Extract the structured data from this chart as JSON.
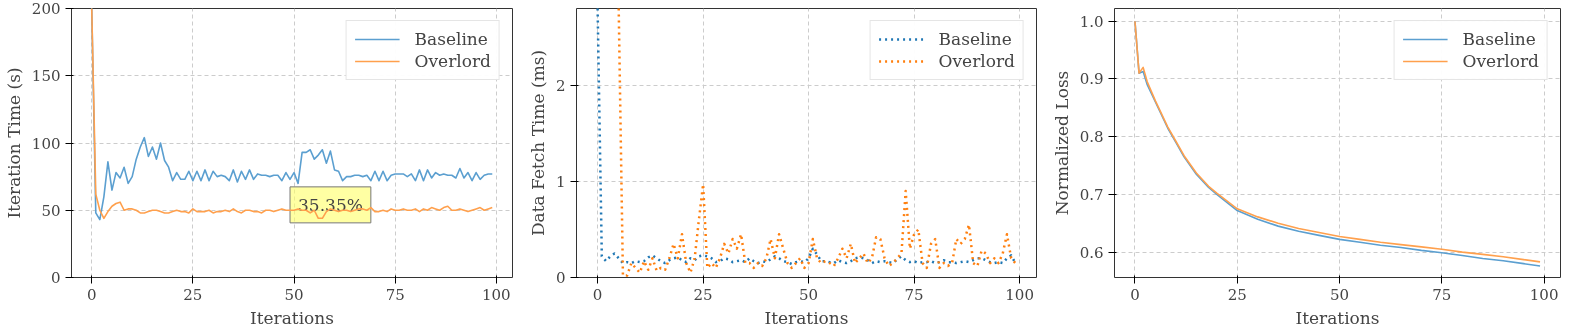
{
  "chart_data": [
    {
      "type": "line",
      "xlabel": "Iterations",
      "ylabel": "Iteration Time (s)",
      "xlim": [
        -5,
        104
      ],
      "ylim": [
        0,
        200
      ],
      "xticks": [
        0,
        25,
        50,
        75,
        100
      ],
      "yticks": [
        0,
        50,
        100,
        150,
        200
      ],
      "grid": true,
      "legend": "top right",
      "line_style": "solid",
      "annotations": [
        {
          "text": "35.35%",
          "x": 59,
          "y": 54
        }
      ],
      "x": [
        0,
        1,
        2,
        3,
        4,
        5,
        6,
        7,
        8,
        9,
        10,
        11,
        12,
        13,
        14,
        15,
        16,
        17,
        18,
        19,
        20,
        21,
        22,
        23,
        24,
        25,
        26,
        27,
        28,
        29,
        30,
        31,
        32,
        33,
        34,
        35,
        36,
        37,
        38,
        39,
        40,
        41,
        42,
        43,
        44,
        45,
        46,
        47,
        48,
        49,
        50,
        51,
        52,
        53,
        54,
        55,
        56,
        57,
        58,
        59,
        60,
        61,
        62,
        63,
        64,
        65,
        66,
        67,
        68,
        69,
        70,
        71,
        72,
        73,
        74,
        75,
        76,
        77,
        78,
        79,
        80,
        81,
        82,
        83,
        84,
        85,
        86,
        87,
        88,
        89,
        90,
        91,
        92,
        93,
        94,
        95,
        96,
        97,
        98,
        99
      ],
      "series": [
        {
          "name": "Baseline",
          "color": "#5b9fd0",
          "values": [
            200,
            48,
            43,
            60,
            86,
            65,
            78,
            74,
            82,
            70,
            75,
            88,
            97,
            104,
            90,
            97,
            88,
            100,
            87,
            82,
            72,
            78,
            73,
            73,
            79,
            72,
            79,
            72,
            80,
            72,
            79,
            75,
            76,
            75,
            72,
            80,
            71,
            79,
            73,
            80,
            73,
            77,
            76,
            76,
            75,
            76,
            76,
            72,
            78,
            73,
            78,
            70,
            93,
            93,
            95,
            88,
            91,
            95,
            85,
            94,
            80,
            79,
            72,
            75,
            75,
            76,
            76,
            75,
            76,
            72,
            79,
            72,
            79,
            72,
            76,
            77,
            77,
            77,
            75,
            77,
            72,
            80,
            72,
            80,
            74,
            78,
            76,
            77,
            76,
            76,
            74,
            81,
            74,
            78,
            72,
            78,
            73,
            76,
            77,
            77
          ]
        },
        {
          "name": "Overlord",
          "color": "#ffa04d",
          "values": [
            200,
            62,
            50,
            44,
            49,
            53,
            55,
            56,
            50,
            51,
            51,
            50,
            48,
            48,
            49,
            50,
            50,
            49,
            48,
            48,
            49,
            50,
            49,
            49,
            48,
            51,
            49,
            49,
            49,
            50,
            48,
            49,
            49,
            50,
            49,
            51,
            49,
            48,
            50,
            50,
            49,
            49,
            48,
            50,
            50,
            49,
            50,
            51,
            50,
            50,
            50,
            51,
            50,
            50,
            48,
            50,
            44,
            44,
            49,
            51,
            50,
            49,
            50,
            50,
            49,
            50,
            51,
            51,
            50,
            52,
            49,
            49,
            50,
            49,
            51,
            50,
            50,
            51,
            50,
            50,
            51,
            49,
            51,
            50,
            52,
            51,
            50,
            52,
            53,
            50,
            50,
            51,
            50,
            49,
            50,
            51,
            52,
            50,
            51,
            52
          ]
        }
      ]
    },
    {
      "type": "line",
      "xlabel": "Iterations",
      "ylabel": "Data Fetch Time (ms)",
      "xlim": [
        -5,
        104
      ],
      "ylim": [
        0,
        2.8
      ],
      "xticks": [
        0,
        25,
        50,
        75,
        100
      ],
      "yticks": [
        0,
        1,
        2
      ],
      "grid": true,
      "legend": "top right",
      "line_style": "dotted",
      "x": [
        0,
        1,
        2,
        3,
        4,
        5,
        6,
        7,
        8,
        9,
        10,
        11,
        12,
        13,
        14,
        15,
        16,
        17,
        18,
        19,
        20,
        21,
        22,
        23,
        24,
        25,
        26,
        27,
        28,
        29,
        30,
        31,
        32,
        33,
        34,
        35,
        36,
        37,
        38,
        39,
        40,
        41,
        42,
        43,
        44,
        45,
        46,
        47,
        48,
        49,
        50,
        51,
        52,
        53,
        54,
        55,
        56,
        57,
        58,
        59,
        60,
        61,
        62,
        63,
        64,
        65,
        66,
        67,
        68,
        69,
        70,
        71,
        72,
        73,
        74,
        75,
        76,
        77,
        78,
        79,
        80,
        81,
        82,
        83,
        84,
        85,
        86,
        87,
        88,
        89,
        90,
        91,
        92,
        93,
        94,
        95,
        96,
        97,
        98,
        99
      ],
      "series": [
        {
          "name": "Baseline",
          "color": "#1f77b4",
          "values": [
            2.8,
            0.22,
            0.17,
            0.22,
            0.25,
            0.2,
            0.15,
            0.16,
            0.15,
            0.17,
            0.16,
            0.17,
            0.21,
            0.23,
            0.2,
            0.17,
            0.15,
            0.18,
            0.2,
            0.21,
            0.18,
            0.16,
            0.2,
            0.18,
            0.22,
            0.23,
            0.22,
            0.2,
            0.16,
            0.17,
            0.2,
            0.19,
            0.16,
            0.17,
            0.18,
            0.16,
            0.2,
            0.17,
            0.15,
            0.17,
            0.16,
            0.19,
            0.22,
            0.2,
            0.17,
            0.16,
            0.14,
            0.16,
            0.17,
            0.16,
            0.2,
            0.3,
            0.24,
            0.17,
            0.17,
            0.16,
            0.15,
            0.18,
            0.16,
            0.15,
            0.17,
            0.2,
            0.21,
            0.2,
            0.18,
            0.15,
            0.17,
            0.16,
            0.17,
            0.16,
            0.15,
            0.19,
            0.22,
            0.18,
            0.16,
            0.17,
            0.15,
            0.16,
            0.16,
            0.17,
            0.15,
            0.16,
            0.18,
            0.16,
            0.16,
            0.15,
            0.16,
            0.17,
            0.16,
            0.18,
            0.2,
            0.2,
            0.18,
            0.16,
            0.15,
            0.16,
            0.15,
            0.2,
            0.23,
            0.15
          ]
        },
        {
          "name": "Overlord",
          "color": "#ff7f0e",
          "values": [
            null,
            null,
            null,
            null,
            null,
            2.8,
            0.02,
            0.02,
            0.15,
            0.1,
            0.05,
            0.17,
            0.08,
            0.2,
            0.07,
            0.1,
            0.08,
            0.2,
            0.35,
            0.2,
            0.45,
            0.15,
            0.05,
            0.2,
            0.6,
            0.97,
            0.1,
            0.15,
            0.1,
            0.2,
            0.35,
            0.25,
            0.4,
            0.3,
            0.45,
            0.15,
            0.15,
            0.1,
            0.15,
            0.12,
            0.2,
            0.4,
            0.2,
            0.45,
            0.3,
            0.15,
            0.1,
            0.15,
            0.2,
            0.1,
            0.15,
            0.4,
            0.2,
            0.15,
            0.17,
            0.15,
            0.12,
            0.2,
            0.3,
            0.2,
            0.35,
            0.15,
            0.2,
            0.25,
            0.15,
            0.2,
            0.42,
            0.4,
            0.2,
            0.12,
            0.15,
            0.2,
            0.25,
            0.9,
            0.3,
            0.45,
            0.5,
            0.15,
            0.1,
            0.35,
            0.4,
            0.1,
            0.15,
            0.12,
            0.15,
            0.4,
            0.35,
            0.4,
            0.55,
            0.15,
            0.12,
            0.28,
            0.25,
            0.15,
            0.2,
            0.15,
            0.25,
            0.45,
            0.2,
            0.15
          ]
        }
      ]
    },
    {
      "type": "line",
      "xlabel": "Iterations",
      "ylabel": "Normalized Loss",
      "xlim": [
        -5,
        104
      ],
      "ylim": [
        0.556,
        1.022
      ],
      "xticks": [
        0,
        25,
        50,
        75,
        100
      ],
      "yticks": [
        0.6,
        0.7,
        0.8,
        0.9,
        {
          "value": 1,
          "label": "1.0"
        }
      ],
      "grid": true,
      "legend": "top right",
      "line_style": "solid",
      "series": [
        {
          "name": "Baseline",
          "color": "#5b9fd0",
          "x": [
            0,
            1,
            2,
            3,
            5,
            8,
            10,
            12,
            15,
            18,
            20,
            25,
            30,
            35,
            40,
            45,
            50,
            55,
            60,
            65,
            70,
            75,
            80,
            85,
            90,
            95,
            99
          ],
          "values": [
            1.0,
            0.91,
            0.913,
            0.89,
            0.86,
            0.815,
            0.79,
            0.765,
            0.735,
            0.712,
            0.7,
            0.672,
            0.657,
            0.645,
            0.636,
            0.629,
            0.622,
            0.617,
            0.612,
            0.608,
            0.603,
            0.599,
            0.594,
            0.589,
            0.585,
            0.58,
            0.576
          ]
        },
        {
          "name": "Overlord",
          "color": "#ffa04d",
          "x": [
            0,
            1,
            2,
            3,
            5,
            8,
            10,
            12,
            15,
            18,
            20,
            25,
            30,
            35,
            40,
            45,
            50,
            55,
            60,
            65,
            70,
            75,
            80,
            85,
            90,
            95,
            99
          ],
          "values": [
            1.0,
            0.91,
            0.92,
            0.895,
            0.862,
            0.817,
            0.792,
            0.767,
            0.737,
            0.714,
            0.702,
            0.675,
            0.661,
            0.65,
            0.641,
            0.634,
            0.627,
            0.622,
            0.617,
            0.613,
            0.609,
            0.605,
            0.6,
            0.596,
            0.592,
            0.587,
            0.583
          ]
        }
      ]
    }
  ]
}
